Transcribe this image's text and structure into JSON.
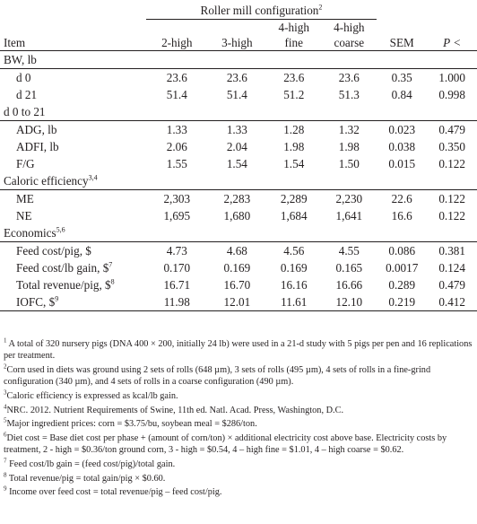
{
  "table": {
    "group_header": "Roller mill configuration",
    "group_header_sup": "2",
    "columns": {
      "item": "Item",
      "c1": "2-high",
      "c2": "3-high",
      "c3_line1": "4-high",
      "c3_line2": "fine",
      "c4_line1": "4-high",
      "c4_line2": "coarse",
      "sem": "SEM",
      "p": "P <"
    },
    "sections": [
      {
        "label": "BW, lb",
        "label_sup": "",
        "rows": [
          {
            "label": "d 0",
            "sup": "",
            "values": [
              "23.6",
              "23.6",
              "23.6",
              "23.6",
              "0.35",
              "1.000"
            ]
          },
          {
            "label": "d 21",
            "sup": "",
            "values": [
              "51.4",
              "51.4",
              "51.2",
              "51.3",
              "0.84",
              "0.998"
            ]
          }
        ]
      },
      {
        "label": "d 0 to 21",
        "label_sup": "",
        "rows": [
          {
            "label": "ADG, lb",
            "sup": "",
            "values": [
              "1.33",
              "1.33",
              "1.28",
              "1.32",
              "0.023",
              "0.479"
            ]
          },
          {
            "label": "ADFI, lb",
            "sup": "",
            "values": [
              "2.06",
              "2.04",
              "1.98",
              "1.98",
              "0.038",
              "0.350"
            ]
          },
          {
            "label": "F/G",
            "sup": "",
            "values": [
              "1.55",
              "1.54",
              "1.54",
              "1.50",
              "0.015",
              "0.122"
            ]
          }
        ]
      },
      {
        "label": "Caloric efficiency",
        "label_sup": "3,4",
        "rows": [
          {
            "label": "ME",
            "sup": "",
            "values": [
              "2,303",
              "2,283",
              "2,289",
              "2,230",
              "22.6",
              "0.122"
            ]
          },
          {
            "label": "NE",
            "sup": "",
            "values": [
              "1,695",
              "1,680",
              "1,684",
              "1,641",
              "16.6",
              "0.122"
            ]
          }
        ]
      },
      {
        "label": "Economics",
        "label_sup": "5,6",
        "rows": [
          {
            "label": "Feed cost/pig, $",
            "sup": "",
            "values": [
              "4.73",
              "4.68",
              "4.56",
              "4.55",
              "0.086",
              "0.381"
            ]
          },
          {
            "label": "Feed cost/lb gain, $",
            "sup": "7",
            "values": [
              "0.170",
              "0.169",
              "0.169",
              "0.165",
              "0.0017",
              "0.124"
            ]
          },
          {
            "label": "Total revenue/pig, $",
            "sup": "8",
            "values": [
              "16.71",
              "16.70",
              "16.16",
              "16.66",
              "0.289",
              "0.479"
            ]
          },
          {
            "label": "IOFC, $",
            "sup": "9",
            "values": [
              "11.98",
              "12.01",
              "11.61",
              "12.10",
              "0.219",
              "0.412"
            ]
          }
        ]
      }
    ]
  },
  "footnotes": [
    {
      "mark": "1",
      "text": " A total of 320 nursery pigs (DNA 400 × 200, initially 24 lb) were used in a 21-d study with 5 pigs per pen and 16 replications per treatment."
    },
    {
      "mark": "2",
      "text": "Corn used in diets was ground using 2 sets of rolls (648 µm), 3 sets of rolls (495 µm), 4 sets of rolls in a fine-grind configuration (340 µm), and 4 sets of rolls in a coarse configuration (490 µm)."
    },
    {
      "mark": "3",
      "text": "Caloric efficiency is expressed as kcal/lb gain."
    },
    {
      "mark": "4",
      "text": "NRC. 2012. Nutrient Requirements of Swine, 11th ed. Natl. Acad. Press, Washington, D.C."
    },
    {
      "mark": "5",
      "text": "Major ingredient prices: corn = $3.75/bu, soybean meal = $286/ton."
    },
    {
      "mark": "6",
      "text": "Diet cost = Base diet cost per phase + (amount of corn/ton) × additional electricity cost above base.  Electricity costs by treatment, 2 - high = $0.36/ton ground corn, 3 - high = $0.54, 4 – high fine = $1.01, 4 – high coarse = $0.62."
    },
    {
      "mark": "7",
      "text": " Feed cost/lb gain = (feed cost/pig)/total gain."
    },
    {
      "mark": "8",
      "text": " Total revenue/pig = total gain/pig × $0.60."
    },
    {
      "mark": "9",
      "text": " Income over feed cost = total revenue/pig – feed cost/pig."
    }
  ]
}
